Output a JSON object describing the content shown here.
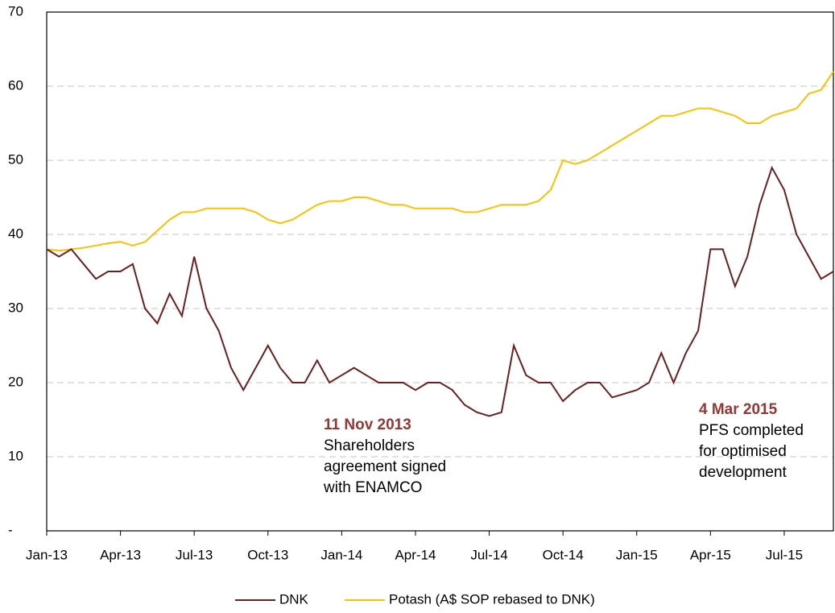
{
  "chart_data": {
    "type": "line",
    "x": [
      0,
      0.5,
      1,
      1.5,
      2,
      2.5,
      3,
      3.5,
      4,
      4.5,
      5,
      5.5,
      6,
      6.5,
      7,
      7.5,
      8,
      8.5,
      9,
      9.5,
      10,
      10.5,
      11,
      11.5,
      12,
      12.5,
      13,
      13.5,
      14,
      14.5,
      15,
      15.5,
      16,
      16.5,
      17,
      17.5,
      18,
      18.5,
      19,
      19.5,
      20,
      20.5,
      21,
      21.5,
      22,
      22.5,
      23,
      23.5,
      24,
      24.5,
      25,
      25.5,
      26,
      26.5,
      27,
      27.5,
      28,
      28.5,
      29,
      29.5,
      30,
      30.5,
      31,
      31.5,
      32
    ],
    "series": [
      {
        "name": "DNK",
        "color": "#6b1f1f",
        "values": [
          38,
          37,
          38,
          36,
          34,
          35,
          35,
          36,
          30,
          28,
          32,
          29,
          37,
          30,
          27,
          22,
          19,
          22,
          25,
          22,
          20,
          20,
          23,
          20,
          21,
          22,
          21,
          20,
          20,
          20,
          19,
          20,
          20,
          19,
          17,
          16,
          15.5,
          16,
          25,
          21,
          20,
          20,
          17.5,
          19,
          20,
          20,
          18,
          18.5,
          19,
          20,
          24,
          20,
          24,
          27,
          38,
          38,
          33,
          37,
          44,
          49,
          46,
          40,
          37,
          34,
          35
        ]
      },
      {
        "name": "Potash (A$ SOP rebased to DNK)",
        "color": "#ffc000",
        "values": [
          38,
          37.8,
          38,
          38.2,
          38.5,
          38.8,
          39,
          38.5,
          39,
          40.5,
          42,
          43,
          43,
          43.5,
          43.5,
          43.5,
          43.5,
          43,
          42,
          41.5,
          42,
          43,
          44,
          44.5,
          44.5,
          45,
          45,
          44.5,
          44,
          44,
          43.5,
          43.5,
          43.5,
          43.5,
          43,
          43,
          43.5,
          44,
          44,
          44,
          44.5,
          46,
          50,
          49.5,
          50,
          51,
          52,
          53,
          54,
          55,
          56,
          56,
          56.5,
          57,
          57,
          56.5,
          56,
          55,
          55,
          56,
          56.5,
          57,
          59,
          59.5,
          62
        ]
      }
    ],
    "xlim": [
      0,
      32
    ],
    "xticks": [
      {
        "value": 0,
        "label": "Jan-13"
      },
      {
        "value": 3,
        "label": "Apr-13"
      },
      {
        "value": 6,
        "label": "Jul-13"
      },
      {
        "value": 9,
        "label": "Oct-13"
      },
      {
        "value": 12,
        "label": "Jan-14"
      },
      {
        "value": 15,
        "label": "Apr-14"
      },
      {
        "value": 18,
        "label": "Jul-14"
      },
      {
        "value": 21,
        "label": "Oct-14"
      },
      {
        "value": 24,
        "label": "Jan-15"
      },
      {
        "value": 27,
        "label": "Apr-15"
      },
      {
        "value": 30,
        "label": "Jul-15"
      }
    ],
    "ylim": [
      0,
      70
    ],
    "yticks": [
      {
        "value": 0,
        "label": "-"
      },
      10,
      20,
      30,
      40,
      50,
      60,
      70
    ],
    "grid": true,
    "legend": "bottom",
    "annotations": [
      {
        "title": "11 Nov 2013",
        "text": [
          "Shareholders",
          "agreement signed",
          "with ENAMCO"
        ]
      },
      {
        "title": "4 Mar 2015",
        "text": [
          "PFS completed",
          "for optimised",
          "development"
        ]
      }
    ]
  }
}
